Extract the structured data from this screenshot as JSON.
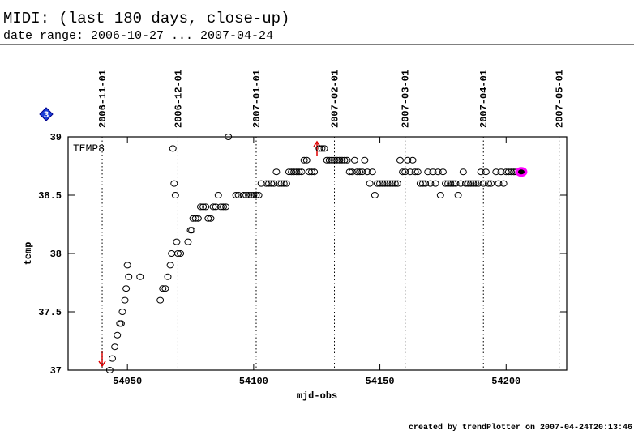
{
  "chart_data": {
    "type": "scatter",
    "title": "MIDI: (last 180 days, close-up)",
    "subtitle": "date range: 2006-10-27 ... 2007-04-24",
    "badge": "3",
    "panel_label": "TEMP8",
    "xlabel": "mjd-obs",
    "ylabel": "temp",
    "footer": "created by trendPlotter on 2007-04-24T20:13:46",
    "xlim": [
      54026.5,
      54224
    ],
    "ylim": [
      37,
      39
    ],
    "xticks": [
      54050,
      54100,
      54150,
      54200
    ],
    "yticks": [
      37,
      37.5,
      38,
      38.5,
      39
    ],
    "date_lines": [
      {
        "value": 54040,
        "label": "2006-11-01"
      },
      {
        "value": 54070,
        "label": "2006-12-01"
      },
      {
        "value": 54101,
        "label": "2007-01-01"
      },
      {
        "value": 54132,
        "label": "2007-02-01"
      },
      {
        "value": 54160,
        "label": "2007-03-01"
      },
      {
        "value": 54191,
        "label": "2007-04-01"
      },
      {
        "value": 54221,
        "label": "2007-05-01"
      }
    ],
    "highlight_last_color": "#ff00ff",
    "series": [
      {
        "color": "#000000",
        "x": [
          54043,
          54044,
          54045,
          54046,
          54047,
          54047.5,
          54048,
          54049,
          54049.5,
          54050,
          54050.5,
          54055,
          54063,
          54064,
          54065,
          54066,
          54067,
          54067.5,
          54068,
          54068.5,
          54069,
          54069.5,
          54070,
          54071,
          54074,
          54075,
          54075.5,
          54076,
          54077,
          54078,
          54079,
          54080,
          54081,
          54082,
          54083,
          54084,
          54085,
          54086,
          54087,
          54088,
          54089,
          54090,
          54093,
          54094,
          54096,
          54097,
          54098,
          54099,
          54100,
          54101,
          54102,
          54103,
          54105,
          54106,
          54107,
          54108,
          54109,
          54110,
          54111,
          54112,
          54113,
          54114,
          54115,
          54116,
          54117,
          54118,
          54119,
          54120,
          54121,
          54122,
          54123,
          54124,
          54126,
          54127,
          54128,
          54129,
          54130,
          54131,
          54132,
          54133,
          54134,
          54135,
          54136,
          54137,
          54138,
          54139,
          54140,
          54141,
          54142,
          54143,
          54144,
          54145,
          54146,
          54147,
          54148,
          54149,
          54150,
          54151,
          54152,
          54153,
          54154,
          54155,
          54156,
          54157,
          54158,
          54159,
          54160,
          54161,
          54162,
          54163,
          54164,
          54165,
          54166,
          54167,
          54168,
          54169,
          54170,
          54171,
          54172,
          54173,
          54174,
          54175,
          54176,
          54177,
          54178,
          54179,
          54180,
          54181,
          54182,
          54183,
          54184,
          54185,
          54186,
          54187,
          54188,
          54189,
          54190,
          54191,
          54192,
          54193,
          54194,
          54196,
          54197,
          54198,
          54199,
          54200,
          54201,
          54202,
          54203,
          54204,
          54205,
          54206
        ],
        "y": [
          37.0,
          37.1,
          37.2,
          37.3,
          37.4,
          37.4,
          37.5,
          37.6,
          37.7,
          37.9,
          37.8,
          37.8,
          37.6,
          37.7,
          37.7,
          37.8,
          37.9,
          38.0,
          38.9,
          38.6,
          38.5,
          38.1,
          38.0,
          38.0,
          38.1,
          38.2,
          38.2,
          38.3,
          38.3,
          38.3,
          38.4,
          38.4,
          38.4,
          38.3,
          38.3,
          38.4,
          38.4,
          38.5,
          38.4,
          38.4,
          38.4,
          39.0,
          38.5,
          38.5,
          38.5,
          38.5,
          38.5,
          38.5,
          38.5,
          38.5,
          38.5,
          38.6,
          38.6,
          38.6,
          38.6,
          38.6,
          38.7,
          38.6,
          38.6,
          38.6,
          38.6,
          38.7,
          38.7,
          38.7,
          38.7,
          38.7,
          38.7,
          38.8,
          38.8,
          38.7,
          38.7,
          38.7,
          38.9,
          38.9,
          38.9,
          38.8,
          38.8,
          38.8,
          38.8,
          38.8,
          38.8,
          38.8,
          38.8,
          38.8,
          38.7,
          38.7,
          38.8,
          38.7,
          38.7,
          38.7,
          38.8,
          38.7,
          38.6,
          38.7,
          38.5,
          38.6,
          38.6,
          38.6,
          38.6,
          38.6,
          38.6,
          38.6,
          38.6,
          38.6,
          38.8,
          38.7,
          38.7,
          38.8,
          38.7,
          38.8,
          38.7,
          38.7,
          38.6,
          38.6,
          38.6,
          38.7,
          38.6,
          38.7,
          38.6,
          38.7,
          38.5,
          38.7,
          38.6,
          38.6,
          38.6,
          38.6,
          38.6,
          38.5,
          38.6,
          38.7,
          38.6,
          38.6,
          38.6,
          38.6,
          38.6,
          38.6,
          38.7,
          38.6,
          38.7,
          38.6,
          38.6,
          38.7,
          38.6,
          38.7,
          38.6,
          38.7,
          38.7,
          38.7,
          38.7,
          38.7,
          38.7,
          38.7
        ]
      }
    ]
  }
}
